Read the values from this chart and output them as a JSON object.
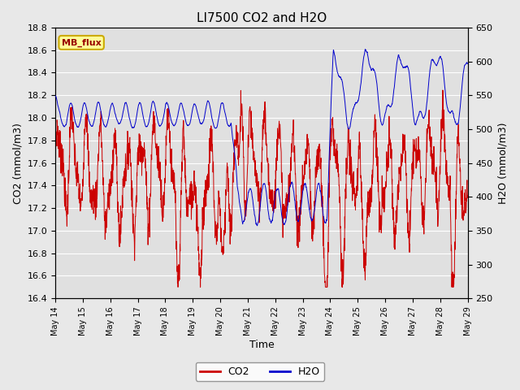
{
  "title": "LI7500 CO2 and H2O",
  "xlabel": "Time",
  "ylabel_left": "CO2 (mmol/m3)",
  "ylabel_right": "H2O (mmol/m3)",
  "co2_ylim": [
    16.4,
    18.8
  ],
  "h2o_ylim": [
    250,
    650
  ],
  "co2_color": "#cc0000",
  "h2o_color": "#0000cc",
  "fig_facecolor": "#e8e8e8",
  "plot_facecolor": "#e0e0e0",
  "grid_color": "#ffffff",
  "annotation_text": "MB_flux",
  "annotation_facecolor": "#ffff99",
  "annotation_edgecolor": "#ccaa00",
  "annotation_textcolor": "#990000",
  "x_tick_labels": [
    "May 14",
    "May 15",
    "May 16",
    "May 17",
    "May 18",
    "May 19",
    "May 20",
    "May 21",
    "May 22",
    "May 23",
    "May 24",
    "May 25",
    "May 26",
    "May 27",
    "May 28",
    "May 29"
  ],
  "co2_ticks": [
    16.4,
    16.6,
    16.8,
    17.0,
    17.2,
    17.4,
    17.6,
    17.8,
    18.0,
    18.2,
    18.4,
    18.6,
    18.8
  ],
  "h2o_ticks": [
    250,
    300,
    350,
    400,
    450,
    500,
    550,
    600,
    650
  ],
  "n_points": 2000,
  "days": 15
}
